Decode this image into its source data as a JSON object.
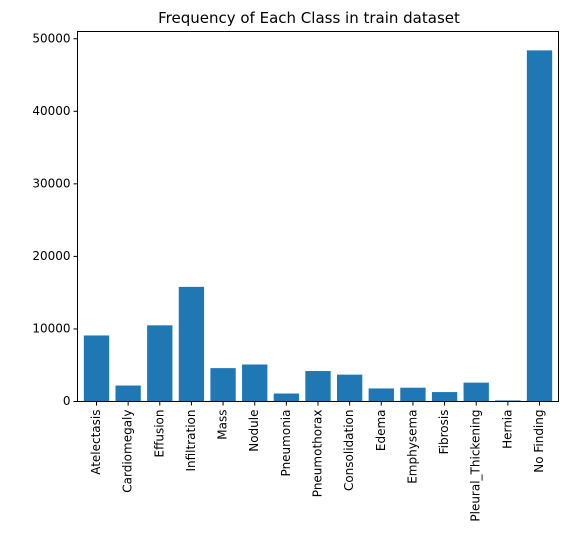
{
  "chart_data": {
    "type": "bar",
    "title": "Frequency of Each Class in train dataset",
    "xlabel": "",
    "ylabel": "",
    "categories": [
      "Atelectasis",
      "Cardiomegaly",
      "Effusion",
      "Infiltration",
      "Mass",
      "Nodule",
      "Pneumonia",
      "Pneumothorax",
      "Consolidation",
      "Edema",
      "Emphysema",
      "Fibrosis",
      "Pleural_Thickening",
      "Hernia",
      "No Finding"
    ],
    "values": [
      9100,
      2200,
      10500,
      15800,
      4600,
      5100,
      1100,
      4200,
      3700,
      1800,
      1900,
      1300,
      2600,
      150,
      48400
    ],
    "yticks": [
      0,
      10000,
      20000,
      30000,
      40000,
      50000
    ],
    "ylim": [
      0,
      51000
    ],
    "bar_color": "#1f77b4",
    "grid": false,
    "legend": "none"
  }
}
